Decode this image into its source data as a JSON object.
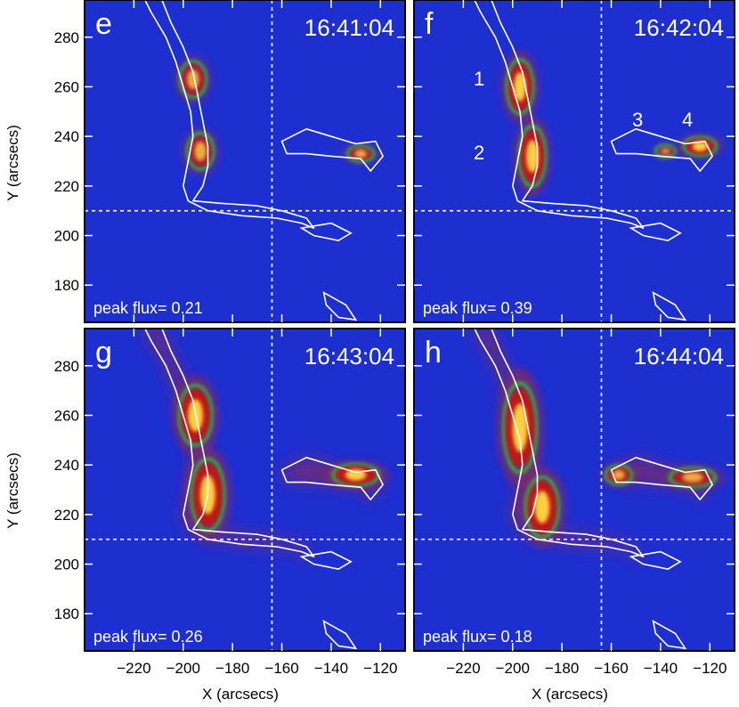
{
  "figure": {
    "ylabel": "Y (arcsecs)",
    "xlabel": "X (arcsecs)",
    "panels": [
      {
        "label": "e",
        "time": "16:41:04",
        "peak": "peak flux= 0.21"
      },
      {
        "label": "f",
        "time": "16:42:04",
        "peak": "peak flux= 0.39"
      },
      {
        "label": "g",
        "time": "16:43:04",
        "peak": "peak flux= 0.26"
      },
      {
        "label": "h",
        "time": "16:44:04",
        "peak": "peak flux= 0.18"
      }
    ],
    "source_labels": [
      "1",
      "2",
      "3",
      "4"
    ]
  },
  "chart_data": {
    "type": "heatmap",
    "xlabel": "X (arcsecs)",
    "ylabel": "Y (arcsecs)",
    "xlim": [
      -240,
      -110
    ],
    "ylim": [
      165,
      295
    ],
    "xticks": [
      -220,
      -200,
      -180,
      -160,
      -140,
      -120
    ],
    "yticks": [
      180,
      200,
      220,
      240,
      260,
      280
    ],
    "dashed_crosshair": {
      "x": -164,
      "y": 210
    },
    "colors": {
      "background": "#1e2fd0",
      "glow": "#7a2a6e",
      "core": "#c4120e",
      "hot": "#ffd040",
      "contour": "#ffffff",
      "contour_green": "#22e322"
    },
    "panels": [
      {
        "label": "e",
        "time": "16:41:04",
        "peak_flux": 0.21,
        "sources": [
          {
            "x": -196,
            "y": 263,
            "sx": 4,
            "sy": 6,
            "a": 0.8
          },
          {
            "x": -193,
            "y": 234,
            "sx": 4,
            "sy": 6,
            "a": 0.8
          },
          {
            "x": -128,
            "y": 233,
            "sx": 4,
            "sy": 2.5,
            "a": 0.8
          }
        ]
      },
      {
        "label": "f",
        "time": "16:42:04",
        "peak_flux": 0.39,
        "sources": [
          {
            "x": -197,
            "y": 260,
            "sx": 4,
            "sy": 9,
            "a": 1
          },
          {
            "x": -192,
            "y": 232,
            "sx": 4,
            "sy": 10,
            "a": 1
          },
          {
            "x": -138,
            "y": 234,
            "sx": 3,
            "sy": 2,
            "a": 0.6
          },
          {
            "x": -124,
            "y": 236,
            "sx": 5,
            "sy": 3,
            "a": 1
          }
        ]
      },
      {
        "label": "g",
        "time": "16:43:04",
        "peak_flux": 0.26,
        "sources": [
          {
            "x": -195,
            "y": 260,
            "sx": 5,
            "sy": 10,
            "a": 1
          },
          {
            "x": -190,
            "y": 228,
            "sx": 5,
            "sy": 12,
            "a": 1
          },
          {
            "x": -130,
            "y": 236,
            "sx": 7,
            "sy": 3.5,
            "a": 1
          }
        ]
      },
      {
        "label": "h",
        "time": "16:44:04",
        "peak_flux": 0.18,
        "sources": [
          {
            "x": -197,
            "y": 255,
            "sx": 5,
            "sy": 15,
            "a": 1
          },
          {
            "x": -188,
            "y": 223,
            "sx": 5,
            "sy": 10,
            "a": 1
          },
          {
            "x": -157,
            "y": 236,
            "sx": 4,
            "sy": 3,
            "a": 0.8
          },
          {
            "x": -127,
            "y": 235,
            "sx": 7,
            "sy": 3,
            "a": 0.8
          }
        ]
      }
    ]
  }
}
